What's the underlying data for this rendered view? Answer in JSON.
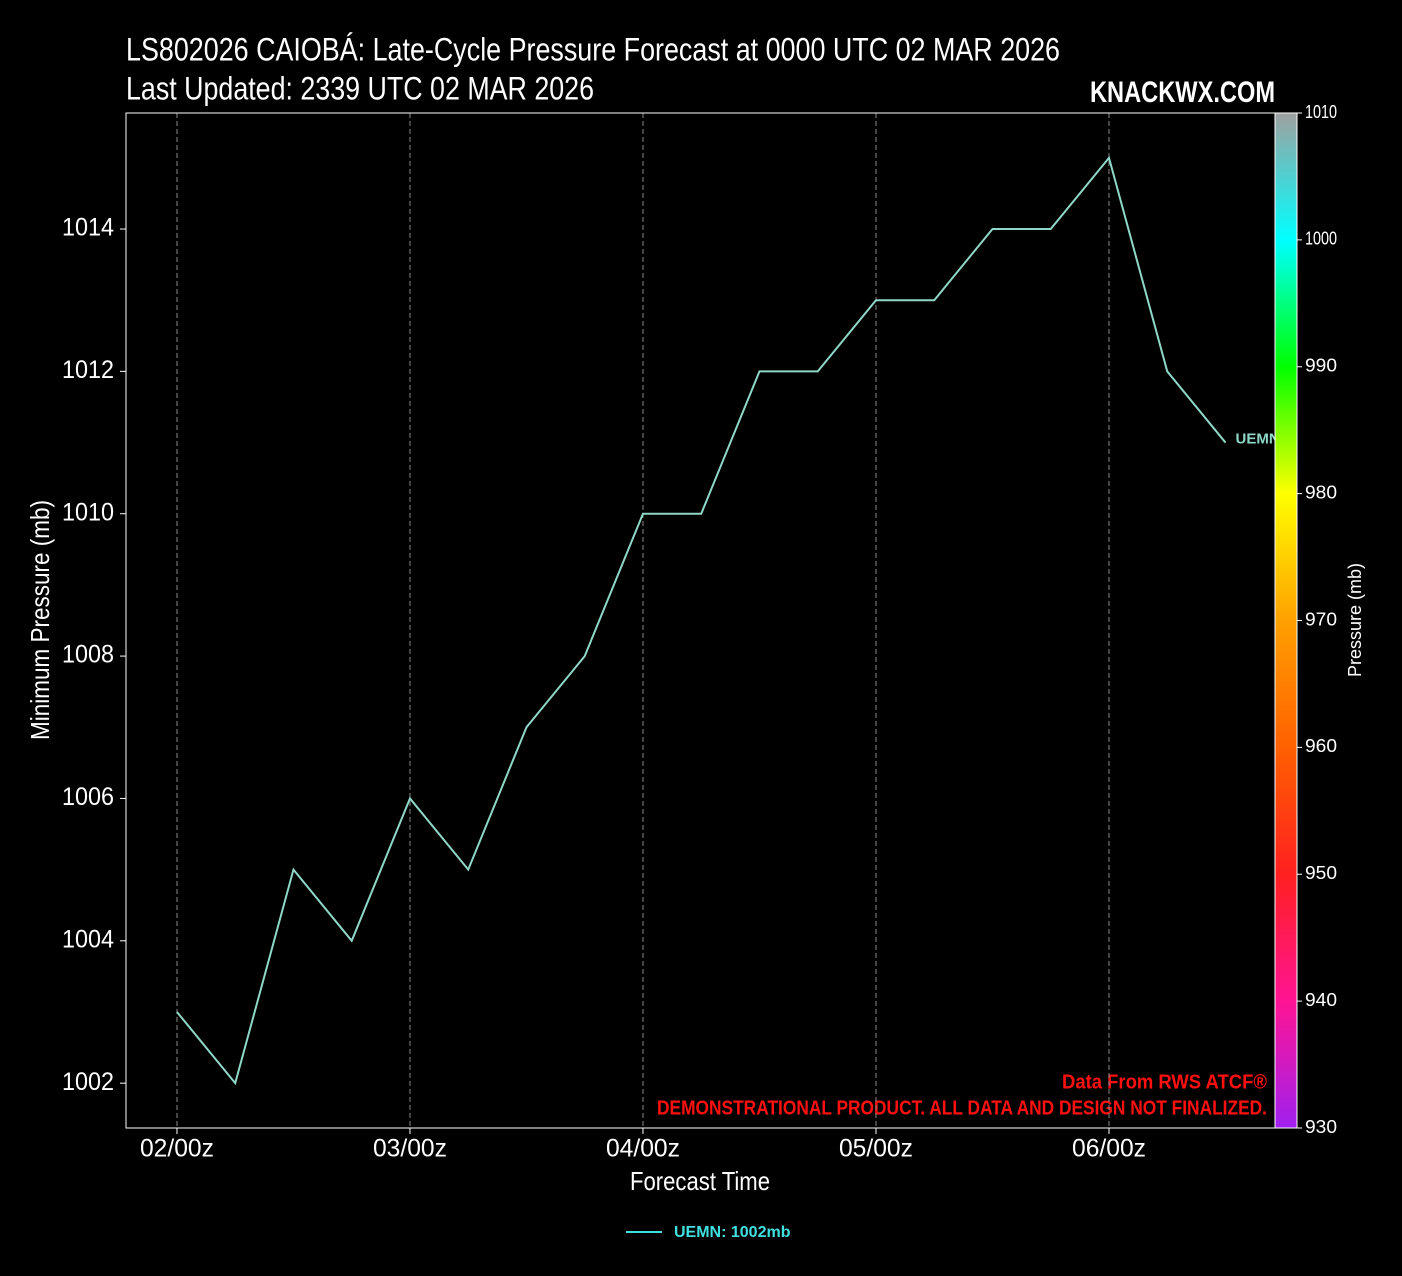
{
  "chart_data": {
    "type": "line",
    "title": "LS802026 CAIOBÁ: Late-Cycle Pressure Forecast at 0000 UTC 02 MAR 2026",
    "subtitle": "Last Updated: 2339 UTC 02 MAR 2026",
    "brand": "KNACKWX.COM",
    "source_note": "Data From RWS ATCF®",
    "disclaimer": "DEMONSTRATIONAL PRODUCT. ALL DATA AND DESIGN NOT FINALIZED.",
    "xlabel": "Forecast Time",
    "ylabel": "Minimum Pressure (mb)",
    "x": [
      0,
      6,
      12,
      18,
      24,
      30,
      36,
      42,
      48,
      54,
      60,
      66,
      72,
      78,
      84,
      90,
      96,
      102,
      108
    ],
    "series": [
      {
        "name": "UEMN",
        "color": "#8fd8c8",
        "values": [
          1003,
          1002,
          1005,
          1004,
          1006,
          1005,
          1007,
          1008,
          1010,
          1010,
          1012,
          1012,
          1013,
          1013,
          1014,
          1014,
          1015,
          1012,
          1011
        ]
      }
    ],
    "legend_label": "UEMN: 1002mb",
    "legend_color": "#40e0e0",
    "xlim": [
      -5.25,
      113.1
    ],
    "xticks": [
      {
        "value": 0,
        "label": "02/00z"
      },
      {
        "value": 24,
        "label": "03/00z"
      },
      {
        "value": 48,
        "label": "04/00z"
      },
      {
        "value": 72,
        "label": "05/00z"
      },
      {
        "value": 96,
        "label": "06/00z"
      }
    ],
    "ylim": [
      1001.37,
      1015.63
    ],
    "yticks": [
      1002,
      1004,
      1006,
      1008,
      1010,
      1012,
      1014
    ],
    "grid": true,
    "colorbar": {
      "label": "Pressure (mb)",
      "lim": [
        930,
        1010
      ],
      "ticks": [
        930,
        940,
        950,
        960,
        970,
        980,
        990,
        1000,
        1010
      ],
      "colors": [
        "#a020f0",
        "#ff1493",
        "#ff2020",
        "#ff6000",
        "#ffa000",
        "#ffff00",
        "#00ff00",
        "#00ffff",
        "#a0a0a0"
      ]
    }
  }
}
